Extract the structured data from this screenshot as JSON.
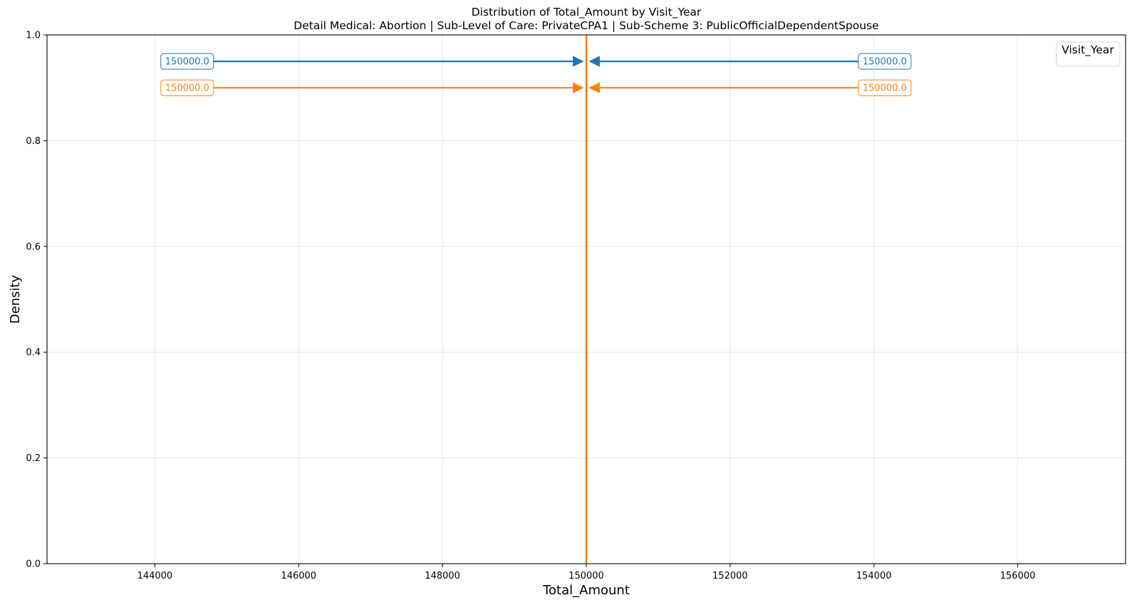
{
  "chart_data": {
    "type": "line",
    "title": "Distribution of Total_Amount by Visit_Year",
    "subtitle": "Detail Medical: Abortion | Sub-Level of Care: PrivateCPA1 | Sub-Scheme 3: PublicOfficialDependentSpouse",
    "xlabel": "Total_Amount",
    "ylabel": "Density",
    "xlim": [
      142500,
      157500
    ],
    "ylim": [
      0,
      1.0
    ],
    "x_ticks": [
      144000,
      146000,
      148000,
      150000,
      152000,
      154000,
      156000
    ],
    "y_ticks": [
      0.0,
      0.2,
      0.4,
      0.6,
      0.8,
      1.0
    ],
    "x_tick_labels": [
      "144000",
      "146000",
      "148000",
      "150000",
      "152000",
      "154000",
      "156000"
    ],
    "y_tick_labels": [
      "0.0",
      "0.2",
      "0.4",
      "0.6",
      "0.8",
      "1.0"
    ],
    "grid": true,
    "legend": {
      "title": "Visit_Year",
      "placement": "top-right",
      "entries": []
    },
    "series": [
      {
        "color": "#1f77b4",
        "vline_x": 150000
      },
      {
        "color": "#ff7f0e",
        "vline_x": 150000
      }
    ],
    "annotations": [
      {
        "text": "150000.0",
        "color": "#1f77b4",
        "series": 0,
        "y": 0.95,
        "text_x": 144450,
        "target_x": 149950
      },
      {
        "text": "150000.0",
        "color": "#1f77b4",
        "series": 0,
        "y": 0.95,
        "text_x": 154150,
        "target_x": 150050
      },
      {
        "text": "150000.0",
        "color": "#ff7f0e",
        "series": 1,
        "y": 0.9,
        "text_x": 144450,
        "target_x": 149950
      },
      {
        "text": "150000.0",
        "color": "#ff7f0e",
        "series": 1,
        "y": 0.9,
        "text_x": 154150,
        "target_x": 150050
      }
    ]
  }
}
